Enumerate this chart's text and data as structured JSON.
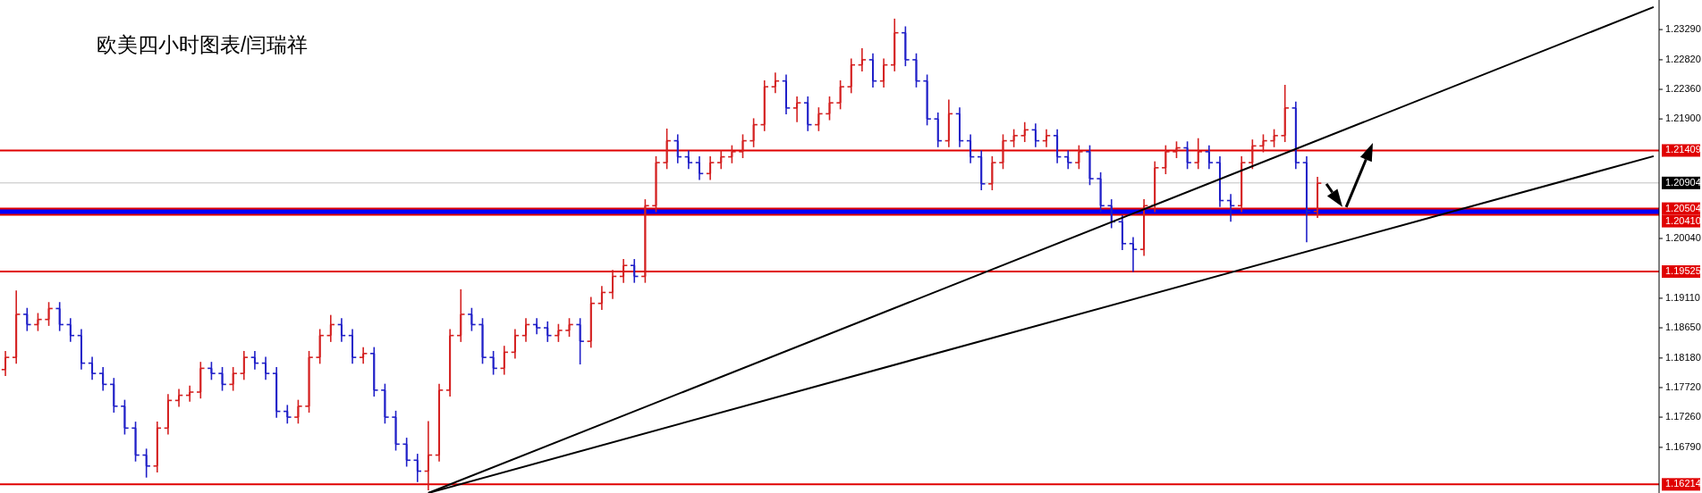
{
  "chart_data": {
    "type": "candlestick",
    "title": "欧美四小时图表/闫瑞祥",
    "tick_labels": "y",
    "categories": [
      null,
      null,
      null,
      null,
      null,
      null,
      null,
      null,
      null,
      null,
      null,
      null,
      null,
      null,
      null,
      null,
      null,
      null,
      null,
      null,
      null,
      null,
      null,
      null,
      null,
      null,
      null,
      null,
      null,
      null,
      null,
      null,
      null,
      null,
      null,
      null,
      null,
      null,
      null,
      null,
      null,
      null,
      null,
      null,
      null,
      null,
      null,
      null,
      null,
      null,
      null,
      null,
      null,
      null,
      null,
      null,
      null,
      null,
      null,
      null,
      null,
      null,
      null,
      null,
      null,
      null,
      null,
      null,
      null,
      null,
      null,
      null,
      null,
      null,
      null,
      null,
      null,
      null,
      null,
      null,
      null,
      null,
      null,
      null,
      null,
      null,
      null,
      null,
      null,
      null,
      null,
      null,
      null,
      null,
      null,
      null,
      null,
      null,
      null,
      null,
      null,
      null,
      null,
      null,
      null,
      null,
      null,
      null,
      null,
      null,
      null,
      null,
      null,
      null,
      null,
      null,
      null,
      null,
      null,
      null,
      null,
      null,
      null,
      null,
      null,
      null,
      null,
      null,
      null,
      null,
      null,
      null,
      null,
      null,
      null,
      null,
      null,
      null,
      null,
      null,
      null,
      null,
      null,
      null,
      null,
      null,
      null,
      null,
      null,
      null,
      null,
      null,
      null
    ],
    "ohlc": [
      [
        1.18,
        1.1829,
        1.179,
        1.1819
      ],
      [
        1.1819,
        1.1923,
        1.1809,
        1.1886
      ],
      [
        1.1886,
        1.1896,
        1.186,
        1.187
      ],
      [
        1.187,
        1.1888,
        1.186,
        1.1878
      ],
      [
        1.1878,
        1.1905,
        1.1868,
        1.1895
      ],
      [
        1.1895,
        1.1905,
        1.186,
        1.187
      ],
      [
        1.187,
        1.188,
        1.1843,
        1.1853
      ],
      [
        1.1853,
        1.1863,
        1.18,
        1.181
      ],
      [
        1.181,
        1.182,
        1.1784,
        1.1794
      ],
      [
        1.1794,
        1.1804,
        1.1767,
        1.1777
      ],
      [
        1.1777,
        1.1787,
        1.1733,
        1.1743
      ],
      [
        1.1743,
        1.1753,
        1.1699,
        1.1709
      ],
      [
        1.1709,
        1.1719,
        1.1657,
        1.1667
      ],
      [
        1.1667,
        1.1677,
        1.1632,
        1.165
      ],
      [
        1.165,
        1.1719,
        1.164,
        1.1709
      ],
      [
        1.1709,
        1.1762,
        1.1699,
        1.1752
      ],
      [
        1.1752,
        1.177,
        1.1742,
        1.176
      ],
      [
        1.176,
        1.1775,
        1.175,
        1.1765
      ],
      [
        1.1765,
        1.1812,
        1.1755,
        1.1802
      ],
      [
        1.1802,
        1.1812,
        1.1784,
        1.1794
      ],
      [
        1.1794,
        1.1804,
        1.1767,
        1.1777
      ],
      [
        1.1777,
        1.1804,
        1.1767,
        1.1794
      ],
      [
        1.1794,
        1.1829,
        1.1784,
        1.1819
      ],
      [
        1.1819,
        1.1829,
        1.18,
        1.181
      ],
      [
        1.181,
        1.182,
        1.1784,
        1.1794
      ],
      [
        1.1794,
        1.1804,
        1.1725,
        1.1735
      ],
      [
        1.1735,
        1.1745,
        1.1716,
        1.1726
      ],
      [
        1.1726,
        1.1753,
        1.1716,
        1.1743
      ],
      [
        1.1743,
        1.1829,
        1.1733,
        1.1819
      ],
      [
        1.1819,
        1.1863,
        1.1809,
        1.1853
      ],
      [
        1.1853,
        1.1885,
        1.1843,
        1.187
      ],
      [
        1.187,
        1.188,
        1.1843,
        1.1853
      ],
      [
        1.1853,
        1.1863,
        1.1809,
        1.1819
      ],
      [
        1.1819,
        1.1835,
        1.1809,
        1.1825
      ],
      [
        1.1825,
        1.1835,
        1.1758,
        1.1768
      ],
      [
        1.1768,
        1.1778,
        1.1716,
        1.1726
      ],
      [
        1.1726,
        1.1736,
        1.1674,
        1.1684
      ],
      [
        1.1684,
        1.1694,
        1.1649,
        1.1659
      ],
      [
        1.1659,
        1.1669,
        1.1625,
        1.1642
      ],
      [
        1.1642,
        1.172,
        1.1612,
        1.1667
      ],
      [
        1.1667,
        1.1778,
        1.1657,
        1.1768
      ],
      [
        1.1768,
        1.1863,
        1.1758,
        1.1853
      ],
      [
        1.1853,
        1.1925,
        1.1843,
        1.1886
      ],
      [
        1.1886,
        1.1896,
        1.186,
        1.187
      ],
      [
        1.187,
        1.188,
        1.1809,
        1.1819
      ],
      [
        1.1819,
        1.1829,
        1.1792,
        1.1802
      ],
      [
        1.1802,
        1.1837,
        1.1792,
        1.1827
      ],
      [
        1.1827,
        1.1863,
        1.1817,
        1.1853
      ],
      [
        1.1853,
        1.188,
        1.1843,
        1.187
      ],
      [
        1.187,
        1.188,
        1.1855,
        1.1865
      ],
      [
        1.1865,
        1.1875,
        1.1843,
        1.1853
      ],
      [
        1.1853,
        1.1871,
        1.1843,
        1.1861
      ],
      [
        1.1861,
        1.188,
        1.1851,
        1.187
      ],
      [
        1.187,
        1.188,
        1.1808,
        1.1844
      ],
      [
        1.1844,
        1.1913,
        1.1834,
        1.1903
      ],
      [
        1.1903,
        1.193,
        1.1893,
        1.192
      ],
      [
        1.192,
        1.1955,
        1.191,
        1.1945
      ],
      [
        1.1945,
        1.1972,
        1.1935,
        1.1962
      ],
      [
        1.1962,
        1.1972,
        1.1935,
        1.1945
      ],
      [
        1.1945,
        1.2065,
        1.1935,
        1.2055
      ],
      [
        1.2055,
        1.2132,
        1.2045,
        1.2122
      ],
      [
        1.2122,
        1.2175,
        1.2112,
        1.2156
      ],
      [
        1.2156,
        1.2166,
        1.2121,
        1.2131
      ],
      [
        1.2131,
        1.2141,
        1.2112,
        1.2122
      ],
      [
        1.2122,
        1.2132,
        1.2095,
        1.2105
      ],
      [
        1.2105,
        1.2132,
        1.2095,
        1.2122
      ],
      [
        1.2122,
        1.2141,
        1.2112,
        1.2131
      ],
      [
        1.2131,
        1.2149,
        1.2121,
        1.2139
      ],
      [
        1.2139,
        1.2166,
        1.2129,
        1.2156
      ],
      [
        1.2156,
        1.2191,
        1.2146,
        1.2181
      ],
      [
        1.2181,
        1.225,
        1.2171,
        1.224
      ],
      [
        1.224,
        1.2262,
        1.223,
        1.2249
      ],
      [
        1.2249,
        1.2259,
        1.2197,
        1.2207
      ],
      [
        1.2207,
        1.2225,
        1.2185,
        1.2215
      ],
      [
        1.2215,
        1.2225,
        1.2171,
        1.2181
      ],
      [
        1.2181,
        1.2208,
        1.2171,
        1.2198
      ],
      [
        1.2198,
        1.2225,
        1.2188,
        1.2215
      ],
      [
        1.2215,
        1.225,
        1.2205,
        1.224
      ],
      [
        1.224,
        1.2284,
        1.223,
        1.2274
      ],
      [
        1.2274,
        1.23,
        1.2264,
        1.2282
      ],
      [
        1.2282,
        1.2292,
        1.2239,
        1.2249
      ],
      [
        1.2249,
        1.2284,
        1.2239,
        1.2274
      ],
      [
        1.2274,
        1.2346,
        1.2264,
        1.2324
      ],
      [
        1.2324,
        1.2334,
        1.2272,
        1.2282
      ],
      [
        1.2282,
        1.2292,
        1.2239,
        1.2249
      ],
      [
        1.2249,
        1.2259,
        1.218,
        1.219
      ],
      [
        1.219,
        1.22,
        1.2146,
        1.2156
      ],
      [
        1.2156,
        1.222,
        1.2146,
        1.2198
      ],
      [
        1.2198,
        1.2208,
        1.2146,
        1.2156
      ],
      [
        1.2156,
        1.2166,
        1.2121,
        1.2131
      ],
      [
        1.2131,
        1.2141,
        1.2079,
        1.2089
      ],
      [
        1.2089,
        1.2132,
        1.2079,
        1.2122
      ],
      [
        1.2122,
        1.2166,
        1.2112,
        1.2156
      ],
      [
        1.2156,
        1.2174,
        1.2146,
        1.2164
      ],
      [
        1.2164,
        1.2185,
        1.2154,
        1.2173
      ],
      [
        1.2173,
        1.2183,
        1.2146,
        1.2156
      ],
      [
        1.2156,
        1.2174,
        1.2146,
        1.2164
      ],
      [
        1.2164,
        1.2174,
        1.2121,
        1.2131
      ],
      [
        1.2131,
        1.2141,
        1.2112,
        1.2122
      ],
      [
        1.2122,
        1.2149,
        1.2112,
        1.2139
      ],
      [
        1.2139,
        1.2149,
        1.2087,
        1.2097
      ],
      [
        1.2097,
        1.2107,
        1.2045,
        1.2055
      ],
      [
        1.2055,
        1.2065,
        1.202,
        1.203
      ],
      [
        1.203,
        1.204,
        1.1986,
        1.1996
      ],
      [
        1.1996,
        1.2006,
        1.1952,
        1.1987
      ],
      [
        1.1987,
        1.2065,
        1.1977,
        1.2055
      ],
      [
        1.2055,
        1.2124,
        1.2045,
        1.2114
      ],
      [
        1.2114,
        1.2149,
        1.2104,
        1.2139
      ],
      [
        1.2139,
        1.2155,
        1.2129,
        1.2145
      ],
      [
        1.2145,
        1.2155,
        1.2112,
        1.2122
      ],
      [
        1.2122,
        1.216,
        1.2112,
        1.2139
      ],
      [
        1.2139,
        1.2149,
        1.2112,
        1.2122
      ],
      [
        1.2122,
        1.2132,
        1.2053,
        1.2063
      ],
      [
        1.2063,
        1.2073,
        1.203,
        1.2055
      ],
      [
        1.2055,
        1.2132,
        1.2045,
        1.2122
      ],
      [
        1.2122,
        1.2158,
        1.2112,
        1.2148
      ],
      [
        1.2148,
        1.2166,
        1.2138,
        1.2156
      ],
      [
        1.2156,
        1.2174,
        1.2146,
        1.2164
      ],
      [
        1.2164,
        1.2243,
        1.2154,
        1.2207
      ],
      [
        1.2207,
        1.2217,
        1.2112,
        1.2122
      ],
      [
        1.2122,
        1.2132,
        1.1998,
        1.2046
      ],
      [
        1.2046,
        1.21,
        1.2036,
        1.209
      ],
      null,
      null,
      null,
      null,
      null,
      null,
      null,
      null,
      null,
      null,
      null,
      null,
      null,
      null,
      null,
      null,
      null,
      null,
      null,
      null,
      null,
      null,
      null,
      null,
      null,
      null,
      null,
      null,
      null,
      null,
      null
    ],
    "colors": [
      "#d42020",
      "#d42020",
      "#2020c8",
      "#d42020",
      "#d42020",
      "#2020c8",
      "#2020c8",
      "#2020c8",
      "#2020c8",
      "#2020c8",
      "#2020c8",
      "#2020c8",
      "#2020c8",
      "#2020c8",
      "#d42020",
      "#d42020",
      "#d42020",
      "#d42020",
      "#d42020",
      "#2020c8",
      "#2020c8",
      "#d42020",
      "#d42020",
      "#2020c8",
      "#2020c8",
      "#2020c8",
      "#2020c8",
      "#d42020",
      "#d42020",
      "#d42020",
      "#d42020",
      "#2020c8",
      "#2020c8",
      "#d42020",
      "#2020c8",
      "#2020c8",
      "#2020c8",
      "#2020c8",
      "#2020c8",
      "#d42020",
      "#d42020",
      "#d42020",
      "#d42020",
      "#2020c8",
      "#2020c8",
      "#2020c8",
      "#d42020",
      "#d42020",
      "#d42020",
      "#2020c8",
      "#2020c8",
      "#d42020",
      "#d42020",
      "#2020c8",
      "#d42020",
      "#d42020",
      "#d42020",
      "#d42020",
      "#2020c8",
      "#d42020",
      "#d42020",
      "#d42020",
      "#2020c8",
      "#2020c8",
      "#2020c8",
      "#d42020",
      "#d42020",
      "#d42020",
      "#d42020",
      "#d42020",
      "#d42020",
      "#d42020",
      "#2020c8",
      "#d42020",
      "#2020c8",
      "#d42020",
      "#d42020",
      "#d42020",
      "#d42020",
      "#d42020",
      "#2020c8",
      "#d42020",
      "#d42020",
      "#2020c8",
      "#2020c8",
      "#2020c8",
      "#2020c8",
      "#d42020",
      "#2020c8",
      "#2020c8",
      "#2020c8",
      "#d42020",
      "#d42020",
      "#d42020",
      "#d42020",
      "#2020c8",
      "#d42020",
      "#2020c8",
      "#2020c8",
      "#d42020",
      "#2020c8",
      "#2020c8",
      "#2020c8",
      "#2020c8",
      "#2020c8",
      "#d42020",
      "#d42020",
      "#d42020",
      "#d42020",
      "#2020c8",
      "#d42020",
      "#2020c8",
      "#2020c8",
      "#2020c8",
      "#d42020",
      "#d42020",
      "#d42020",
      "#d42020",
      "#d42020",
      "#2020c8",
      "#2020c8",
      "#d42020",
      null,
      null,
      null,
      null,
      null,
      null,
      null,
      null,
      null,
      null,
      null,
      null,
      null,
      null,
      null,
      null,
      null,
      null,
      null,
      null,
      null,
      null,
      null,
      null,
      null,
      null,
      null,
      null,
      null,
      null,
      null
    ],
    "series": [
      {
        "type": "line",
        "color": "#000000",
        "values": [
          null,
          null,
          null,
          null,
          null,
          null,
          null,
          null,
          null,
          null,
          null,
          null,
          null,
          null,
          null,
          null,
          null,
          null,
          null,
          null,
          null,
          null,
          null,
          null,
          null,
          null,
          null,
          null,
          null,
          null,
          null,
          null,
          null,
          null,
          null,
          null,
          null,
          null,
          null,
          1.1608,
          null,
          null,
          null,
          null,
          null,
          null,
          null,
          null,
          null,
          null,
          null,
          null,
          null,
          null,
          null,
          null,
          null,
          null,
          null,
          null,
          null,
          null,
          null,
          null,
          null,
          null,
          null,
          null,
          null,
          null,
          null,
          null,
          null,
          null,
          null,
          null,
          null,
          null,
          null,
          null,
          null,
          null,
          null,
          null,
          null,
          null,
          null,
          null,
          null,
          null,
          null,
          null,
          null,
          null,
          null,
          null,
          null,
          null,
          null,
          null,
          null,
          null,
          null,
          null,
          null,
          null,
          null,
          null,
          null,
          null,
          null,
          null,
          null,
          null,
          null,
          null,
          null,
          null,
          null,
          null,
          null,
          null,
          null,
          null,
          null,
          null,
          null,
          null,
          null,
          null,
          null,
          null,
          null,
          null,
          null,
          null,
          null,
          null,
          null,
          null,
          null,
          null,
          null,
          null,
          null,
          null,
          null,
          null,
          null,
          null,
          null,
          null,
          1.2364
        ]
      },
      {
        "type": "line",
        "color": "#000000",
        "values": [
          null,
          null,
          null,
          null,
          null,
          null,
          null,
          null,
          null,
          null,
          null,
          null,
          null,
          null,
          null,
          null,
          null,
          null,
          null,
          null,
          null,
          null,
          null,
          null,
          null,
          null,
          null,
          null,
          null,
          null,
          null,
          null,
          null,
          null,
          null,
          null,
          null,
          null,
          null,
          1.1608,
          null,
          null,
          null,
          null,
          null,
          null,
          null,
          null,
          null,
          null,
          null,
          null,
          null,
          null,
          null,
          null,
          null,
          null,
          null,
          null,
          null,
          null,
          null,
          null,
          null,
          null,
          null,
          null,
          null,
          null,
          null,
          null,
          null,
          null,
          null,
          null,
          null,
          null,
          null,
          null,
          null,
          null,
          null,
          null,
          null,
          null,
          null,
          null,
          null,
          null,
          null,
          null,
          null,
          null,
          null,
          null,
          null,
          null,
          null,
          null,
          null,
          null,
          null,
          null,
          null,
          null,
          null,
          null,
          null,
          null,
          null,
          null,
          null,
          null,
          null,
          null,
          null,
          null,
          null,
          null,
          null,
          null,
          null,
          null,
          null,
          null,
          null,
          null,
          null,
          null,
          null,
          null,
          null,
          null,
          null,
          null,
          null,
          null,
          null,
          null,
          null,
          null,
          null,
          null,
          null,
          null,
          null,
          null,
          null,
          null,
          null,
          null,
          1.2132
        ]
      }
    ],
    "ylim": [
      1.1608,
      1.2375
    ],
    "yticks": [
      {
        "value": 1.2329,
        "label": "1.23290"
      },
      {
        "value": 1.2282,
        "label": "1.22820"
      },
      {
        "value": 1.2236,
        "label": "1.22360"
      },
      {
        "value": 1.219,
        "label": "1.21900"
      },
      {
        "value": 1.2004,
        "label": "1.20040"
      },
      {
        "value": 1.1911,
        "label": "1.19110"
      },
      {
        "value": 1.1865,
        "label": "1.18650"
      },
      {
        "value": 1.1818,
        "label": "1.18180"
      },
      {
        "value": 1.1772,
        "label": "1.17720"
      },
      {
        "value": 1.1726,
        "label": "1.17260"
      },
      {
        "value": 1.1679,
        "label": "1.16790"
      }
    ],
    "bands": [
      {
        "axis": "y",
        "from": 1.2041,
        "to": 1.20504,
        "color": "#0000ff"
      }
    ],
    "ref_lines": [
      {
        "axis": "y",
        "value": 1.21409,
        "label": "1.21409",
        "color": "#e00000"
      },
      {
        "axis": "y",
        "value": 1.20904,
        "label": "1.20904",
        "color": "#c0c0c0"
      },
      {
        "axis": "y",
        "value": 1.20504,
        "label": "1.20504",
        "color": "#e00000"
      },
      {
        "axis": "y",
        "value": 1.2041,
        "label": "1.20410",
        "color": "#e00000"
      },
      {
        "axis": "y",
        "value": 1.19525,
        "label": "1.19525",
        "color": "#e00000"
      },
      {
        "axis": "y",
        "value": 1.16214,
        "label": "1.16214",
        "color": "#e00000"
      }
    ]
  }
}
